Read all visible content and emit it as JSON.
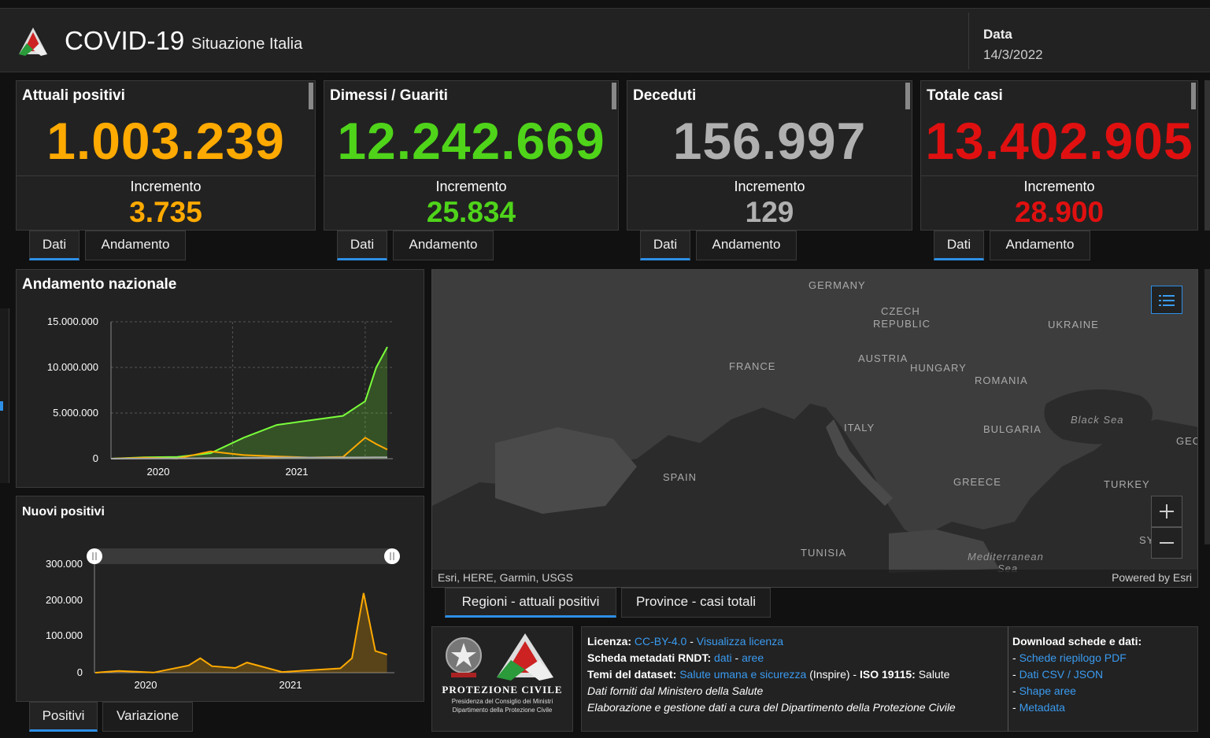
{
  "header": {
    "title": "COVID-19",
    "subtitle": "Situazione Italia",
    "date_label": "Data",
    "date_value": "14/3/2022"
  },
  "cards": [
    {
      "title": "Attuali positivi",
      "value": "1.003.239",
      "inc_label": "Incremento",
      "inc_value": "3.735",
      "color": "#ffaa00",
      "tabs": [
        "Dati",
        "Andamento"
      ]
    },
    {
      "title": "Dimessi / Guariti",
      "value": "12.242.669",
      "inc_label": "Incremento",
      "inc_value": "25.834",
      "color": "#4fd41a",
      "tabs": [
        "Dati",
        "Andamento"
      ]
    },
    {
      "title": "Deceduti",
      "value": "156.997",
      "inc_label": "Incremento",
      "inc_value": "129",
      "color": "#b0b0b0",
      "tabs": [
        "Dati",
        "Andamento"
      ]
    },
    {
      "title": "Totale casi",
      "value": "13.402.905",
      "inc_label": "Incremento",
      "inc_value": "28.900",
      "color": "#e01010",
      "tabs": [
        "Dati",
        "Andamento"
      ]
    }
  ],
  "andamento": {
    "title": "Andamento nazionale",
    "yticks": [
      "15.000.000",
      "10.000.000",
      "5.000.000",
      "0"
    ],
    "xticks": [
      "2020",
      "2021"
    ]
  },
  "nuovi": {
    "title": "Nuovi positivi",
    "yticks": [
      "300.000",
      "200.000",
      "100.000",
      "0"
    ],
    "xticks": [
      "2020",
      "2021"
    ],
    "tabs": [
      "Positivi",
      "Variazione"
    ]
  },
  "chart_data": [
    {
      "type": "area",
      "title": "Andamento nazionale",
      "xlabel": "",
      "ylabel": "",
      "ylim": [
        0,
        15000000
      ],
      "grid": true,
      "x": [
        "2020-02",
        "2020-05",
        "2020-08",
        "2020-11",
        "2021-02",
        "2021-05",
        "2021-08",
        "2021-11",
        "2022-01",
        "2022-02",
        "2022-03"
      ],
      "series": [
        {
          "values": [
            0,
            150000,
            200000,
            600000,
            2300000,
            3700000,
            4200000,
            4700000,
            6300000,
            10000000,
            12242669
          ],
          "color": "#7aff3a"
        },
        {
          "values": [
            0,
            100000,
            30000,
            800000,
            400000,
            250000,
            130000,
            200000,
            2300000,
            1600000,
            1003239
          ],
          "color": "#ffaa00"
        },
        {
          "values": [
            0,
            30000,
            35000,
            50000,
            95000,
            125000,
            128000,
            133000,
            140000,
            150000,
            156997
          ],
          "color": "#aaaaaa"
        }
      ]
    },
    {
      "type": "area",
      "title": "Nuovi positivi",
      "xlabel": "",
      "ylabel": "",
      "ylim": [
        0,
        300000
      ],
      "grid": false,
      "x": [
        "2020-02",
        "2020-04",
        "2020-07",
        "2020-10",
        "2020-11",
        "2020-12",
        "2021-02",
        "2021-03",
        "2021-06",
        "2021-08",
        "2021-11",
        "2021-12",
        "2022-01",
        "2022-02",
        "2022-03"
      ],
      "values": [
        0,
        5000,
        500,
        20000,
        40000,
        18000,
        13000,
        28000,
        2000,
        6000,
        12000,
        40000,
        220000,
        60000,
        50000
      ],
      "color": "#ffaa00"
    }
  ],
  "map": {
    "labels": [
      "GERMANY",
      "CZECH",
      "REPUBLIC",
      "UKRAINE",
      "FRANCE",
      "AUSTRIA",
      "HUNGARY",
      "ROMANIA",
      "ITALY",
      "BULGARIA",
      "SPAIN",
      "GREECE",
      "TURKEY",
      "TUNISIA",
      "GEO",
      "SY"
    ],
    "seas": [
      "Black Sea",
      "Mediterranean",
      "Sea"
    ],
    "attribution_left": "Esri, HERE, Garmin, USGS",
    "attribution_right": "Powered by Esri",
    "tabs": [
      "Regioni - attuali positivi",
      "Province - casi totali"
    ]
  },
  "info": {
    "org": "PROTEZIONE CIVILE",
    "org_line1": "Presidenza del Consiglio dei Ministri",
    "org_line2": "Dipartimento della Protezione Civile",
    "licenza_label": "Licenza:",
    "licenza_link": "CC-BY-4.0",
    "licenza_sep": " - ",
    "licenza_view": "Visualizza licenza",
    "rndt_label": "Scheda metadati RNDT:",
    "rndt_dati": "dati",
    "rndt_sep": " - ",
    "rndt_aree": "aree",
    "temi_label": "Temi del dataset:",
    "temi_link": "Salute umana e sicurezza",
    "temi_inspire": " (Inspire) - ",
    "iso_label": "ISO 19115:",
    "iso_value": " Salute",
    "line_dati": "Dati forniti dal Ministero della Salute",
    "line_elab": "Elaborazione e gestione dati a cura del Dipartimento della Protezione Civile",
    "dl_title": "Download schede e dati:",
    "dl_links": [
      "Schede riepilogo PDF",
      "Dati CSV / JSON",
      "Shape aree",
      "Metadata"
    ]
  }
}
